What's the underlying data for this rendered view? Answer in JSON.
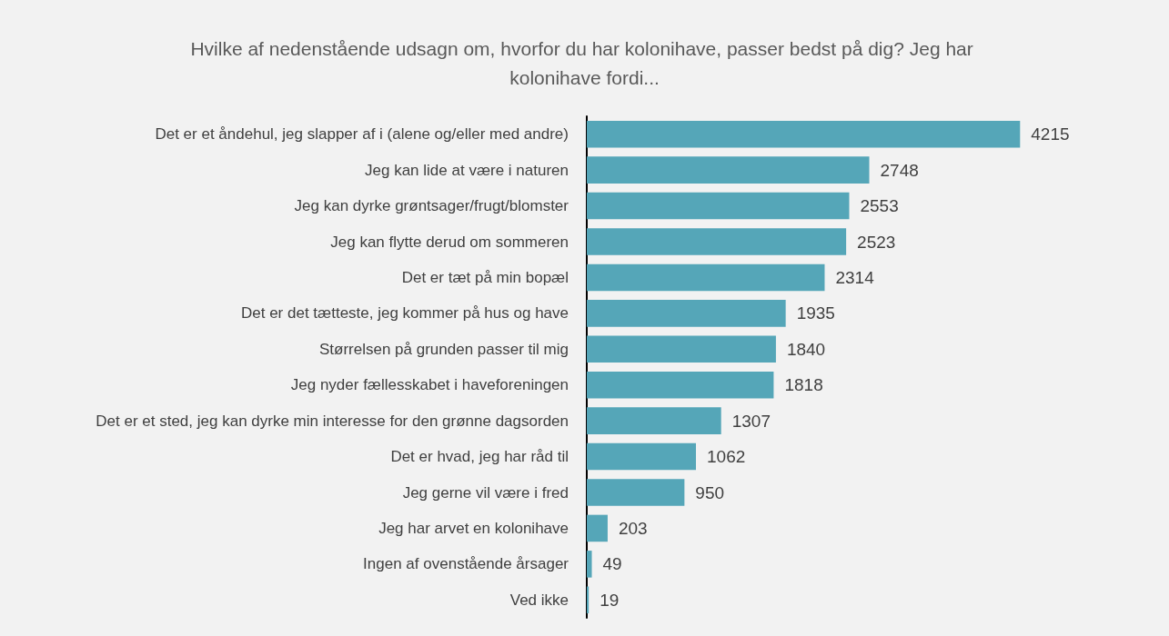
{
  "chart_data": {
    "type": "bar",
    "orientation": "horizontal",
    "title": "Hvilke af nedenstående udsagn om, hvorfor du har kolonihave, passer bedst på dig? Jeg har kolonihave fordi...",
    "categories": [
      "Det er et åndehul, jeg slapper af i (alene og/eller med andre)",
      "Jeg kan lide at være i naturen",
      "Jeg kan dyrke grøntsager/frugt/blomster",
      "Jeg kan flytte derud om sommeren",
      "Det er tæt på min bopæl",
      "Det er det tætteste, jeg kommer på hus og have",
      "Størrelsen på grunden passer til mig",
      "Jeg nyder fællesskabet i haveforeningen",
      "Det er et sted, jeg kan dyrke min interesse for den grønne dagsorden",
      "Det er hvad, jeg har råd til",
      "Jeg gerne vil være i fred",
      "Jeg har arvet en kolonihave",
      "Ingen af ovenstående årsager",
      "Ved ikke"
    ],
    "values": [
      4215,
      2748,
      2553,
      2523,
      2314,
      1935,
      1840,
      1818,
      1307,
      1062,
      950,
      203,
      49,
      19
    ],
    "color": "#55a6b8",
    "data_labels": true
  }
}
